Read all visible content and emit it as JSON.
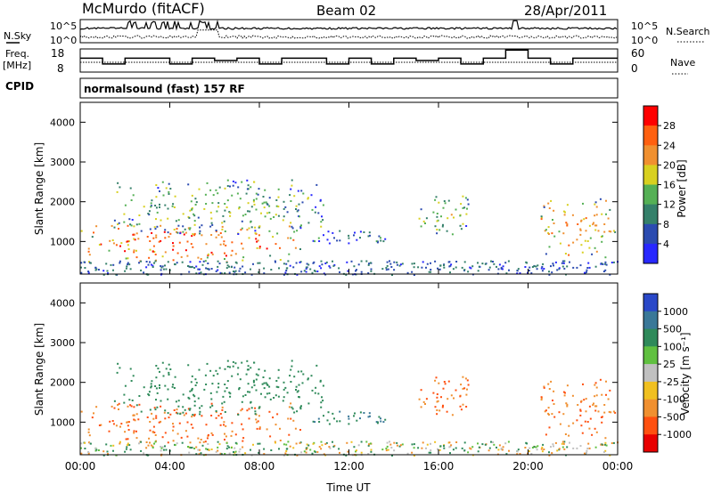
{
  "header": {
    "station": "McMurdo (fitACF)",
    "beam": "Beam 02",
    "date": "28/Apr/2011"
  },
  "top_panels": {
    "nsky_label": "N.Sky",
    "nsky_ticks": [
      "10^5",
      "10^0"
    ],
    "nsearch_label": "N.Search",
    "nsearch_ticks": [
      "10^5",
      "10^0"
    ],
    "freq_label": "Freq.",
    "freq_unit": "[MHz]",
    "freq_ticks": [
      "18",
      "8"
    ],
    "nave_label": "Nave",
    "nave_ticks": [
      "60",
      "0"
    ],
    "cpid_label": "CPID",
    "cpid_text": "normalsound (fast) 157 RF"
  },
  "chart_data": [
    {
      "type": "heatmap",
      "panel": "power",
      "xlabel": "",
      "ylabel": "Slant Range [km]",
      "xlim": [
        0,
        24
      ],
      "ylim": [
        180,
        4500
      ],
      "y_ticks": [
        "1000",
        "2000",
        "3000",
        "4000"
      ],
      "colorbar": {
        "label": "Power [dB]",
        "ticks": [
          "4",
          "8",
          "12",
          "16",
          "20",
          "24",
          "28"
        ],
        "colors": [
          "#2828ff",
          "#2b4bb0",
          "#35806a",
          "#55b055",
          "#d8d020",
          "#f09030",
          "#ff6010",
          "#ff0000"
        ]
      },
      "regions": [
        {
          "t_start": 0.0,
          "t_end": 10.0,
          "r_low": 500,
          "r_high": 1500,
          "level": 28
        },
        {
          "t_start": 1.5,
          "t_end": 11.0,
          "r_low": 1200,
          "r_high": 2600,
          "level": 14
        },
        {
          "t_start": 10.0,
          "t_end": 13.8,
          "r_low": 850,
          "r_high": 1300,
          "level": 8
        },
        {
          "t_start": 15.0,
          "t_end": 17.5,
          "r_low": 1200,
          "r_high": 2200,
          "level": 16
        },
        {
          "t_start": 20.5,
          "t_end": 24.0,
          "r_low": 600,
          "r_high": 2100,
          "level": 22
        }
      ]
    },
    {
      "type": "heatmap",
      "panel": "velocity",
      "xlabel": "Time UT",
      "ylabel": "Slant Range [km]",
      "xlim": [
        0,
        24
      ],
      "ylim": [
        180,
        4500
      ],
      "x_ticks": [
        "00:00",
        "04:00",
        "08:00",
        "12:00",
        "16:00",
        "20:00",
        "00:00"
      ],
      "y_ticks": [
        "1000",
        "2000",
        "3000",
        "4000"
      ],
      "colorbar": {
        "label": "Velocity [m s⁻¹]",
        "ticks": [
          "1000",
          "500",
          "100",
          "25",
          "-25",
          "-100",
          "-500",
          "-1000"
        ],
        "colors": [
          "#2a48c8",
          "#3a7898",
          "#2f8a5a",
          "#60c040",
          "#c0c0c0",
          "#f0c020",
          "#f09030",
          "#ff5010",
          "#e80000"
        ]
      },
      "regions": [
        {
          "t_start": 0.0,
          "t_end": 10.0,
          "r_low": 500,
          "r_high": 1500,
          "velocity": -300
        },
        {
          "t_start": 1.5,
          "t_end": 11.0,
          "r_low": 1200,
          "r_high": 2600,
          "velocity": 100
        },
        {
          "t_start": 10.0,
          "t_end": 13.8,
          "r_low": 850,
          "r_high": 1300,
          "velocity": 300
        },
        {
          "t_start": 15.0,
          "t_end": 17.5,
          "r_low": 1200,
          "r_high": 2200,
          "velocity": -300
        },
        {
          "t_start": 20.5,
          "t_end": 24.0,
          "r_low": 600,
          "r_high": 2100,
          "velocity": -300
        }
      ]
    }
  ]
}
